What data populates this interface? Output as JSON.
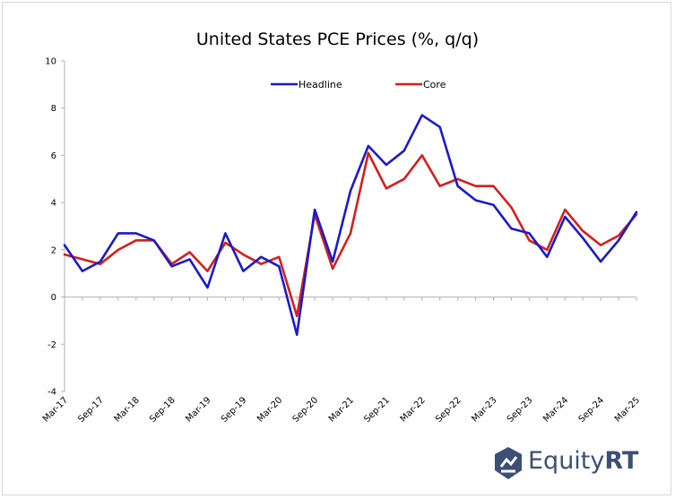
{
  "chart_data": {
    "type": "line",
    "title": "United States PCE Prices (%, q/q)",
    "xlabel": "",
    "ylabel": "",
    "ylim": [
      -4,
      10
    ],
    "yticks": [
      -4,
      -2,
      0,
      2,
      4,
      6,
      8,
      10
    ],
    "x_tick_labels": [
      "Mar-17",
      "Sep-17",
      "Mar-18",
      "Sep-18",
      "Mar-19",
      "Sep-19",
      "Mar-20",
      "Sep-20",
      "Mar-21",
      "Sep-21",
      "Mar-22",
      "Sep-22",
      "Mar-23",
      "Sep-23",
      "Mar-24",
      "Sep-24",
      "Mar-25"
    ],
    "categories": [
      "Mar-17",
      "Jun-17",
      "Sep-17",
      "Dec-17",
      "Mar-18",
      "Jun-18",
      "Sep-18",
      "Dec-18",
      "Mar-19",
      "Jun-19",
      "Sep-19",
      "Dec-19",
      "Mar-20",
      "Jun-20",
      "Sep-20",
      "Dec-20",
      "Mar-21",
      "Jun-21",
      "Sep-21",
      "Dec-21",
      "Mar-22",
      "Jun-22",
      "Sep-22",
      "Dec-22",
      "Mar-23",
      "Jun-23",
      "Sep-23",
      "Dec-23",
      "Mar-24",
      "Jun-24",
      "Sep-24",
      "Dec-24",
      "Mar-25"
    ],
    "legend_position": "top-center",
    "grid": false,
    "series": [
      {
        "name": "Headline",
        "color": "#1a1acc",
        "values": [
          2.2,
          1.1,
          1.5,
          2.7,
          2.7,
          2.4,
          1.3,
          1.6,
          0.4,
          2.7,
          1.1,
          1.7,
          1.3,
          -1.6,
          3.7,
          1.5,
          4.5,
          6.4,
          5.6,
          6.2,
          7.7,
          7.2,
          4.7,
          4.1,
          3.9,
          2.9,
          2.7,
          1.7,
          3.4,
          2.5,
          1.5,
          2.4,
          3.6
        ]
      },
      {
        "name": "Core",
        "color": "#d61e1e",
        "values": [
          1.8,
          1.6,
          1.4,
          2.0,
          2.4,
          2.4,
          1.4,
          1.9,
          1.1,
          2.3,
          1.8,
          1.4,
          1.7,
          -0.8,
          3.5,
          1.2,
          2.7,
          6.1,
          4.6,
          5.0,
          6.0,
          4.7,
          5.0,
          4.7,
          4.7,
          3.8,
          2.4,
          2.0,
          3.7,
          2.8,
          2.2,
          2.6,
          3.5
        ]
      }
    ]
  },
  "branding": {
    "logo_text_main": "Equity",
    "logo_text_bold": "RT",
    "logo_icon": "equityrt-shield-icon"
  }
}
